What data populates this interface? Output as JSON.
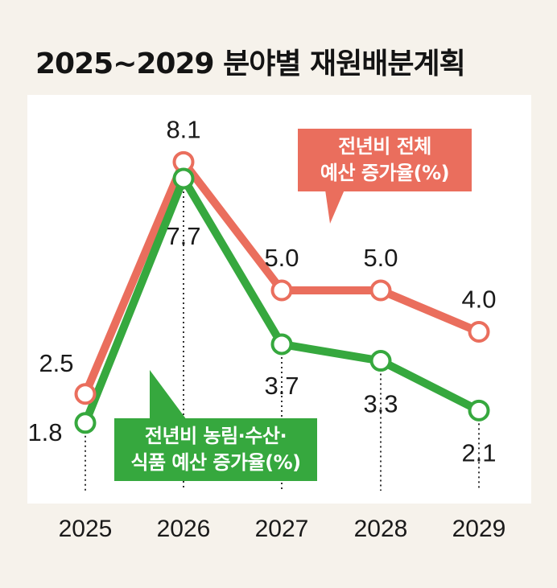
{
  "title": "2025~2029 분야별 재원배분계획",
  "chart_data": {
    "type": "line",
    "categories": [
      "2025",
      "2026",
      "2027",
      "2028",
      "2029"
    ],
    "ylim": [
      0,
      9
    ],
    "grid": false,
    "series": [
      {
        "name": "전년비 전체 예산 증가율(%)",
        "name_lines": [
          "전년비 전체",
          "예산 증가율(%)"
        ],
        "color": "#ea6e5d",
        "values": [
          2.5,
          8.1,
          5.0,
          5.0,
          4.0
        ],
        "labels": [
          "2.5",
          "8.1",
          "5.0",
          "5.0",
          "4.0"
        ]
      },
      {
        "name": "전년비 농림·수산·식품 예산 증가율(%)",
        "name_lines": [
          "전년비 농림·수산·",
          "식품 예산 증가율(%)"
        ],
        "color": "#36a83e",
        "values": [
          1.8,
          7.7,
          3.7,
          3.3,
          2.1
        ],
        "labels": [
          "1.8",
          "7.7",
          "3.7",
          "3.3",
          "2.1"
        ]
      }
    ]
  }
}
